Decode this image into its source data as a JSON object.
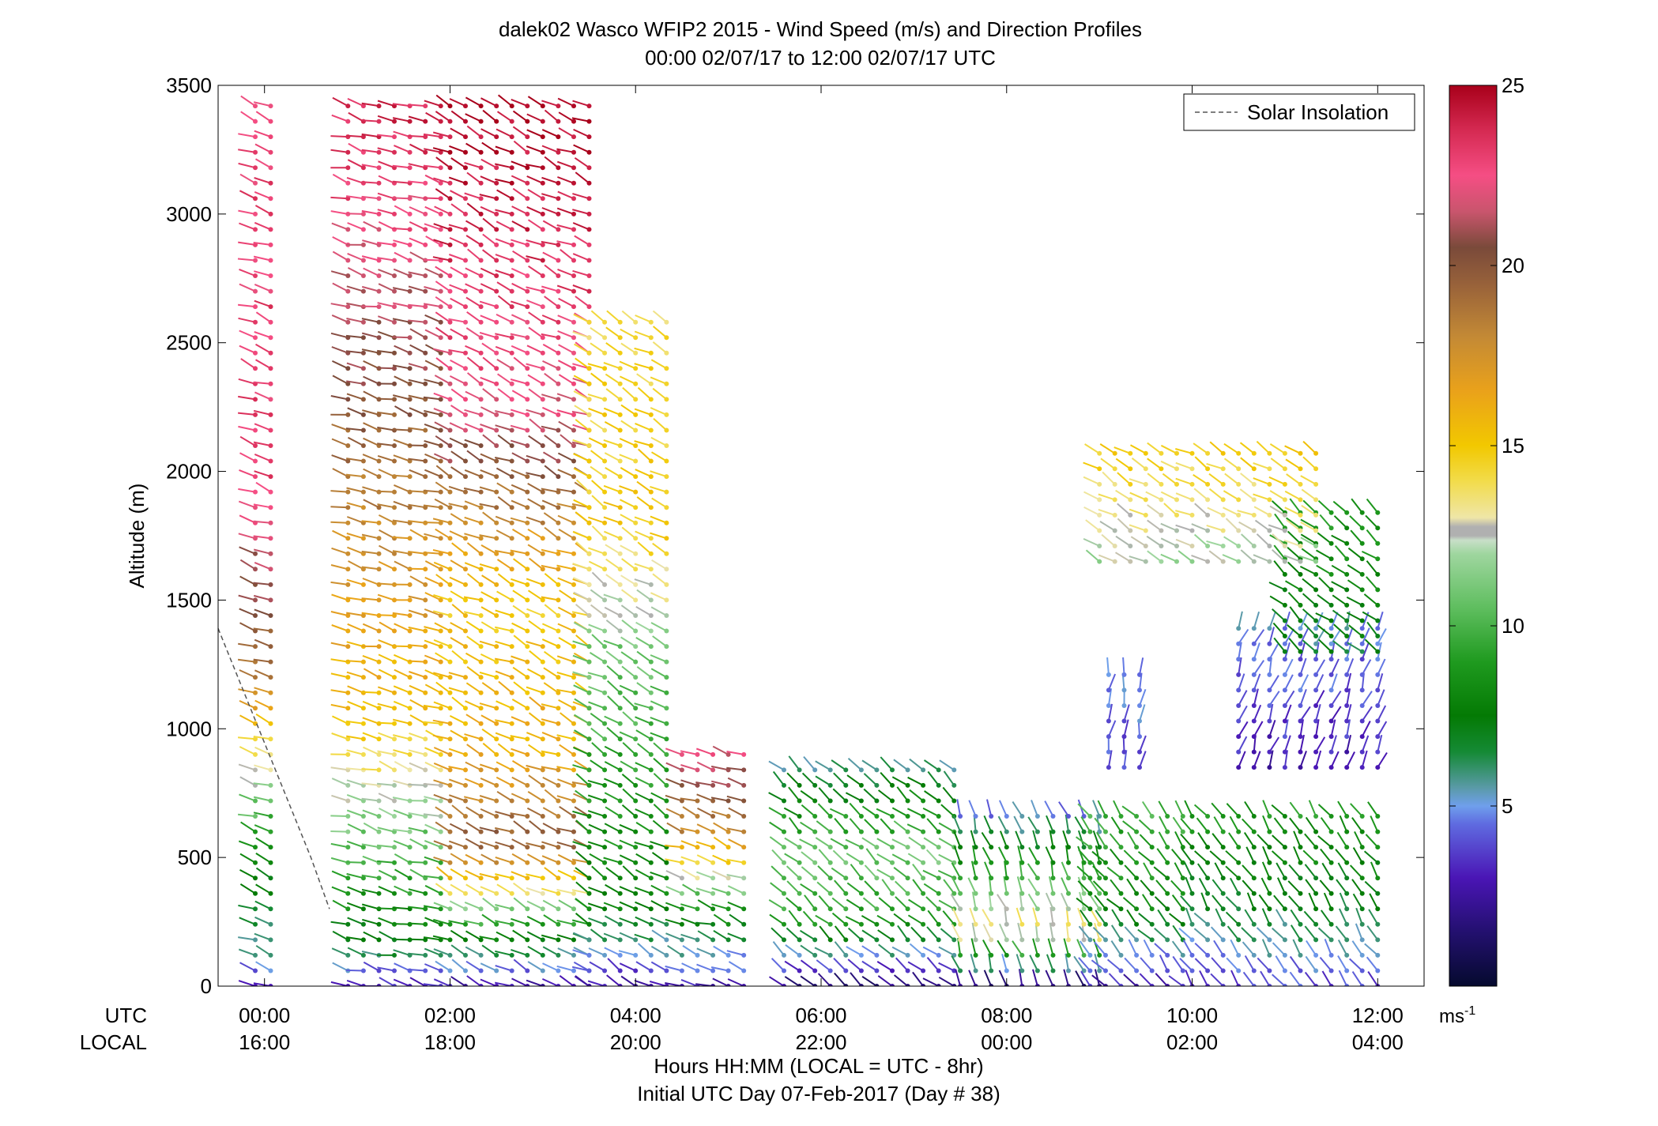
{
  "figure": {
    "title_line1": "dalek02 Wasco WFIP2 2015 - Wind Speed (m/s) and Direction Profiles",
    "title_line2": "00:00 02/07/17 to 12:00 02/07/17  UTC",
    "xlabel_line1": "Hours HH:MM  (LOCAL = UTC - 8hr)",
    "xlabel_line2": "Initial UTC Day 07-Feb-2017 (Day # 38)",
    "row_label_utc": "UTC",
    "row_label_local": "LOCAL",
    "legend_label": "Solar Insolation",
    "colorbar_unit": "ms",
    "colorbar_unit_sup": "-1"
  },
  "chart_data": {
    "type": "scatter",
    "subtype": "wind-barb profile (stick per time/altitude, colored by speed)",
    "title": "dalek02 Wasco WFIP2 2015 - Wind Speed (m/s) and Direction Profiles",
    "ylabel": "Altitude (m)",
    "xlim_hours_utc": [
      -0.5,
      12.5
    ],
    "ylim": [
      0,
      3500
    ],
    "x_ticks": [
      {
        "utc": "00:00",
        "local": "16:00",
        "hour": 0
      },
      {
        "utc": "02:00",
        "local": "18:00",
        "hour": 2
      },
      {
        "utc": "04:00",
        "local": "20:00",
        "hour": 4
      },
      {
        "utc": "06:00",
        "local": "22:00",
        "hour": 6
      },
      {
        "utc": "08:00",
        "local": "00:00",
        "hour": 8
      },
      {
        "utc": "10:00",
        "local": "02:00",
        "hour": 10
      },
      {
        "utc": "12:00",
        "local": "04:00",
        "hour": 12
      }
    ],
    "y_ticks": [
      "0",
      "500",
      "1000",
      "1500",
      "2000",
      "2500",
      "3000",
      "3500"
    ],
    "y_tick_values": [
      0,
      500,
      1000,
      1500,
      2000,
      2500,
      3000,
      3500
    ],
    "colorbar": {
      "min": 0,
      "max": 25,
      "ticks": [
        "5",
        "10",
        "15",
        "20",
        "25"
      ],
      "tick_values": [
        5,
        10,
        15,
        20,
        25
      ]
    },
    "legend": {
      "position": "top-right",
      "entries": [
        "Solar Insolation"
      ]
    },
    "solar_insolation_line": [
      [
        -0.5,
        1390
      ],
      [
        0.5,
        500
      ],
      [
        0.7,
        300
      ]
    ],
    "grid": false,
    "wind_profile_blocks": [
      {
        "t0": -0.1,
        "t1": 0.2,
        "z0": 0,
        "z1": 3450,
        "dz": 60,
        "profile": [
          [
            0,
            3
          ],
          [
            120,
            6
          ],
          [
            500,
            8
          ],
          [
            800,
            12
          ],
          [
            1200,
            19
          ],
          [
            2000,
            23
          ],
          [
            3450,
            23
          ]
        ],
        "dir": 250
      },
      {
        "t0": 0.9,
        "t1": 1.9,
        "z0": 0,
        "z1": 3450,
        "dz": 60,
        "profile": [
          [
            0,
            3
          ],
          [
            150,
            7
          ],
          [
            600,
            11
          ],
          [
            1000,
            15
          ],
          [
            1800,
            18
          ],
          [
            2500,
            21
          ],
          [
            3450,
            24
          ]
        ],
        "dir": 255
      },
      {
        "t0": 2.0,
        "t1": 3.5,
        "z0": 0,
        "z1": 3450,
        "dz": 60,
        "profile": [
          [
            0,
            3
          ],
          [
            200,
            8
          ],
          [
            550,
            20
          ],
          [
            900,
            16
          ],
          [
            1500,
            15
          ],
          [
            2200,
            22
          ],
          [
            3450,
            25
          ]
        ],
        "dir": 245
      },
      {
        "t0": 3.5,
        "t1": 4.4,
        "z0": 0,
        "z1": 2600,
        "dz": 60,
        "profile": [
          [
            0,
            3
          ],
          [
            300,
            8
          ],
          [
            800,
            9
          ],
          [
            1300,
            11
          ],
          [
            1800,
            15
          ],
          [
            2600,
            14
          ]
        ],
        "dir": 240
      },
      {
        "t0": 4.5,
        "t1": 5.3,
        "z0": 0,
        "z1": 900,
        "dz": 60,
        "profile": [
          [
            0,
            3
          ],
          [
            300,
            9
          ],
          [
            600,
            18
          ],
          [
            900,
            22
          ]
        ],
        "dir": 250
      },
      {
        "t0": 5.6,
        "t1": 7.5,
        "z0": 0,
        "z1": 850,
        "dz": 60,
        "profile": [
          [
            0,
            2
          ],
          [
            250,
            9
          ],
          [
            500,
            11
          ],
          [
            850,
            6
          ]
        ],
        "dir": 230
      },
      {
        "t0": 7.5,
        "t1": 9.0,
        "z0": 0,
        "z1": 700,
        "dz": 60,
        "profile": [
          [
            0,
            2
          ],
          [
            200,
            14
          ],
          [
            400,
            10
          ],
          [
            700,
            4
          ]
        ],
        "dir": 200
      },
      {
        "t0": 8.9,
        "t1": 10.0,
        "z0": 0,
        "z1": 700,
        "dz": 60,
        "profile": [
          [
            0,
            3
          ],
          [
            300,
            8
          ],
          [
            700,
            10
          ]
        ],
        "dir": 220
      },
      {
        "t0": 10.0,
        "t1": 12.0,
        "z0": 0,
        "z1": 700,
        "dz": 60,
        "profile": [
          [
            0,
            4
          ],
          [
            300,
            7
          ],
          [
            700,
            9
          ]
        ],
        "dir": 215
      },
      {
        "t0": 9.1,
        "t1": 9.5,
        "z0": 850,
        "z1": 1250,
        "dz": 60,
        "profile": [
          [
            850,
            4
          ],
          [
            1250,
            5
          ]
        ],
        "dir": 170
      },
      {
        "t0": 10.5,
        "t1": 12.0,
        "z0": 850,
        "z1": 1400,
        "dz": 60,
        "profile": [
          [
            850,
            3
          ],
          [
            1400,
            5
          ]
        ],
        "dir": 160
      },
      {
        "t0": 11.0,
        "t1": 12.0,
        "z0": 1300,
        "z1": 1850,
        "dz": 60,
        "profile": [
          [
            1300,
            7
          ],
          [
            1850,
            9
          ]
        ],
        "dir": 230
      },
      {
        "t0": 9.0,
        "t1": 11.4,
        "z0": 1650,
        "z1": 2100,
        "dz": 60,
        "profile": [
          [
            1650,
            12
          ],
          [
            2100,
            15
          ]
        ],
        "dir": 240
      }
    ]
  }
}
